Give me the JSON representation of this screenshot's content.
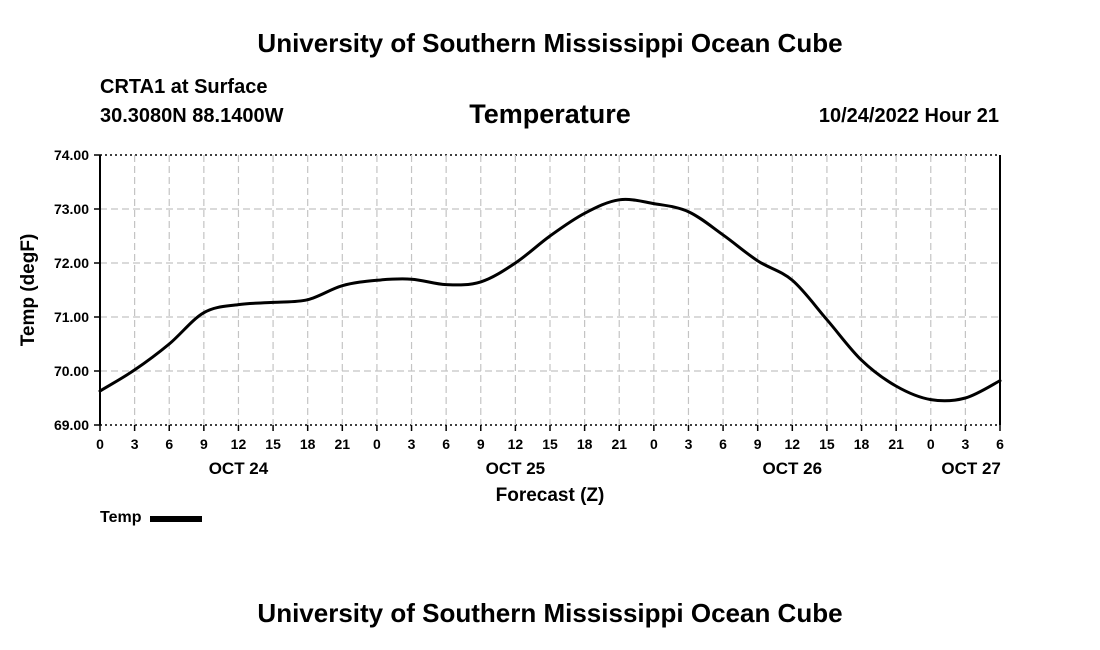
{
  "header": {
    "title": "University of Southern Mississippi Ocean Cube",
    "station": "CRTA1 at Surface",
    "coordinates": "30.3080N  88.1400W",
    "chart_title": "Temperature",
    "datetime": "10/24/2022 Hour 21"
  },
  "footer": {
    "title": "University of Southern Mississippi Ocean Cube"
  },
  "legend": {
    "label": "Temp"
  },
  "chart_data": {
    "type": "line",
    "title": "Temperature",
    "xlabel": "Forecast (Z)",
    "ylabel": "Temp (degF)",
    "ylim": [
      69.0,
      74.0
    ],
    "xlim_hours": [
      0,
      78
    ],
    "y_ticks": [
      "69.00",
      "70.00",
      "71.00",
      "72.00",
      "73.00",
      "74.00"
    ],
    "x_tick_labels": [
      "0",
      "3",
      "6",
      "9",
      "12",
      "15",
      "18",
      "21",
      "0",
      "3",
      "6",
      "9",
      "12",
      "15",
      "18",
      "21",
      "0",
      "3",
      "6",
      "9",
      "12",
      "15",
      "18",
      "21",
      "0",
      "3",
      "6"
    ],
    "day_labels": [
      {
        "label": "OCT 24",
        "hour": 12
      },
      {
        "label": "OCT 25",
        "hour": 36
      },
      {
        "label": "OCT 26",
        "hour": 60
      },
      {
        "label": "OCT 27",
        "hour": 75.5
      }
    ],
    "grid": true,
    "series": [
      {
        "name": "Temp",
        "color": "#000000",
        "x": [
          0,
          3,
          6,
          9,
          12,
          15,
          18,
          21,
          24,
          27,
          30,
          33,
          36,
          39,
          42,
          45,
          48,
          51,
          54,
          57,
          60,
          63,
          66,
          69,
          72,
          75,
          78
        ],
        "values": [
          69.63,
          70.02,
          70.5,
          71.08,
          71.23,
          71.27,
          71.32,
          71.58,
          71.68,
          71.7,
          71.6,
          71.65,
          72.0,
          72.5,
          72.92,
          73.17,
          73.1,
          72.95,
          72.52,
          72.04,
          71.68,
          70.95,
          70.2,
          69.72,
          69.47,
          69.5,
          69.82
        ]
      }
    ]
  }
}
